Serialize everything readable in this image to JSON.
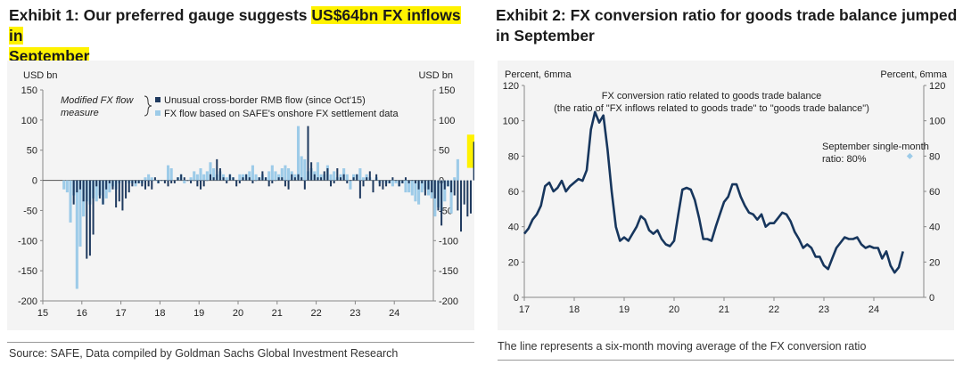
{
  "exhibit1": {
    "title_plain": "Exhibit 1: Our preferred gauge suggests ",
    "title_highlight_1": "US$64bn FX inflows in",
    "title_highlight_2": "September",
    "source": "Source: SAFE, Data compiled by Goldman Sachs Global Investment Research",
    "highlight_color": "#fff200"
  },
  "exhibit2": {
    "title": "Exhibit 2: FX conversion ratio for goods trade balance jumped in September",
    "note": "The line represents a six-month moving average of the FX conversion ratio"
  },
  "chart_data": [
    {
      "type": "bar",
      "ylabel_left": "USD bn",
      "ylabel_right": "USD bn",
      "ylim": [
        -200,
        150
      ],
      "yticks": [
        -200,
        -150,
        -100,
        -50,
        0,
        50,
        100,
        150
      ],
      "xticks": [
        "15",
        "16",
        "17",
        "18",
        "19",
        "20",
        "21",
        "22",
        "23",
        "24"
      ],
      "legend_group_label": "Modified FX flow measure",
      "legend_placement": "top-center",
      "grid": false,
      "series": [
        {
          "name": "Unusual cross-border RMB flow (since Oct'15)",
          "color": "#1f3a5f",
          "start": "2015-10",
          "values": [
            -40,
            -20,
            -15,
            -35,
            -130,
            -125,
            -90,
            -10,
            -30,
            -40,
            -15,
            -5,
            -15,
            -45,
            -35,
            -50,
            -30,
            -20,
            -10,
            -5,
            -5,
            -10,
            -15,
            -10,
            -15,
            5,
            -5,
            0,
            -5,
            -10,
            -5,
            -5,
            5,
            10,
            5,
            0,
            -5,
            0,
            -10,
            -15,
            -10,
            0,
            10,
            5,
            35,
            20,
            5,
            -5,
            10,
            5,
            -10,
            -5,
            5,
            10,
            5,
            -5,
            0,
            5,
            15,
            5,
            -10,
            -5,
            0,
            5,
            5,
            -10,
            -15,
            10,
            5,
            10,
            5,
            -15,
            90,
            30,
            10,
            5,
            5,
            15,
            20,
            -10,
            -5,
            20,
            5,
            10,
            -5,
            0,
            5,
            10,
            -30,
            -10,
            5,
            15,
            -20,
            10,
            -10,
            -15,
            -10,
            -5,
            5,
            0,
            -10,
            -5,
            5,
            -5,
            0,
            -5,
            -15,
            -5,
            -25,
            -15,
            -20,
            -30,
            -50,
            -75,
            -15,
            -10,
            -20,
            -25,
            -50,
            -85,
            -40,
            -60,
            -55,
            64
          ]
        },
        {
          "name": "FX flow based on SAFE's onshore FX settlement data",
          "color": "#9dcbe8",
          "start": "2015-07",
          "values": [
            -15,
            -20,
            -70,
            -25,
            -180,
            -110,
            -60,
            -35,
            -40,
            -30,
            -35,
            -25,
            -40,
            -30,
            -20,
            -10,
            -15,
            -5,
            0,
            0,
            -5,
            -5,
            -10,
            -5,
            -5,
            5,
            10,
            5,
            0,
            -5,
            0,
            0,
            25,
            20,
            0,
            5,
            10,
            -5,
            0,
            5,
            15,
            10,
            20,
            10,
            15,
            30,
            20,
            10,
            15,
            10,
            5,
            10,
            5,
            0,
            10,
            10,
            10,
            15,
            25,
            10,
            5,
            10,
            5,
            15,
            25,
            15,
            10,
            20,
            25,
            20,
            15,
            10,
            90,
            40,
            35,
            15,
            20,
            15,
            30,
            10,
            10,
            25,
            10,
            15,
            5,
            10,
            20,
            10,
            -15,
            10,
            10,
            20,
            5,
            10,
            5,
            0,
            5,
            -5,
            0,
            -5,
            -5,
            -10,
            -5,
            -10,
            -5,
            -20,
            -20,
            -25,
            -35,
            -40,
            -20,
            -15,
            -25,
            -30,
            -60,
            -45,
            -50,
            -35,
            -10,
            -55,
            5,
            35
          ]
        }
      ]
    },
    {
      "type": "line",
      "ylabel_left": "Percent, 6mma",
      "ylabel_right": "Percent, 6mma",
      "ylim": [
        0,
        120
      ],
      "yticks": [
        0,
        20,
        40,
        60,
        80,
        100,
        120
      ],
      "xticks": [
        "17",
        "18",
        "19",
        "20",
        "21",
        "22",
        "23",
        "24"
      ],
      "grid": false,
      "series": [
        {
          "name": "FX conversion ratio related to goods trade balance",
          "legend_line_2": "(the ratio of \"FX inflows related to goods trade\" to \"goods trade balance\")",
          "color": "#17365d",
          "start": "2017-01",
          "values": [
            36,
            39,
            44,
            47,
            52,
            63,
            65,
            60,
            62,
            66,
            60,
            63,
            65,
            67,
            66,
            72,
            95,
            105,
            99,
            103,
            84,
            60,
            40,
            32,
            34,
            32,
            36,
            40,
            46,
            44,
            38,
            36,
            38,
            33,
            30,
            29,
            32,
            47,
            61,
            62,
            61,
            55,
            45,
            33,
            33,
            32,
            40,
            47,
            54,
            57,
            64,
            64,
            57,
            52,
            48,
            47,
            44,
            47,
            40,
            42,
            42,
            45,
            48,
            47,
            43,
            37,
            33,
            28,
            30,
            28,
            23,
            23,
            18,
            16,
            22,
            28,
            31,
            34,
            33,
            33,
            34,
            30,
            28,
            29,
            28,
            28,
            22,
            26,
            18,
            14,
            17,
            26
          ]
        },
        {
          "name": "September single-month ratio: 80%",
          "type": "scatter",
          "color": "#9dcbe8",
          "x": "2024-09",
          "value": 80
        }
      ]
    }
  ]
}
